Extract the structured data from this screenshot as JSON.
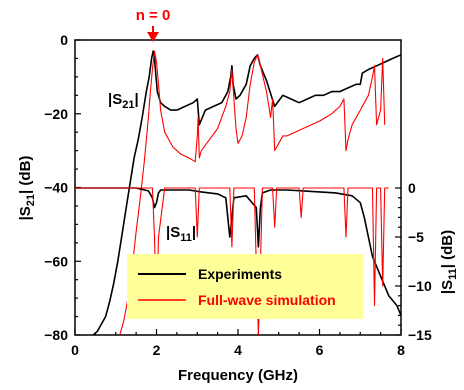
{
  "chart_data": {
    "type": "line",
    "annotation": {
      "text": "n = 0",
      "x": 2.0,
      "color": "#ff0000"
    },
    "xlabel": "Frequency (GHz)",
    "xlim": [
      0,
      8
    ],
    "xticks": [
      "0",
      "2",
      "4",
      "6",
      "8"
    ],
    "y_left": {
      "label_main": "|S",
      "label_sub": "21",
      "label_tail": "| (dB)",
      "lim": [
        -80,
        0
      ],
      "ticks": [
        "0",
        "−20",
        "−40",
        "−60",
        "−80"
      ]
    },
    "y_right": {
      "label_main": "|S",
      "label_sub": "11",
      "label_tail": "| (dB)",
      "lim": [
        -15,
        0
      ],
      "ticks": [
        "0",
        "−5",
        "−10",
        "−15"
      ]
    },
    "curve_labels": {
      "s21": {
        "main": "|S",
        "sub": "21",
        "tail": "|"
      },
      "s11": {
        "main": "|S",
        "sub": "11",
        "tail": "|"
      }
    },
    "legend": {
      "placement": "bottom-center",
      "background": "#ffff99",
      "entries": [
        {
          "label": "Experiments",
          "color": "#000000"
        },
        {
          "label": "Full-wave simulation",
          "color": "#ff0000"
        }
      ]
    },
    "series": [
      {
        "name": "Experiments",
        "color": "#000000",
        "axis": "left",
        "trace": "S21",
        "x": [
          0.45,
          0.55,
          0.65,
          0.75,
          0.85,
          0.95,
          1.05,
          1.15,
          1.25,
          1.35,
          1.45,
          1.55,
          1.65,
          1.75,
          1.82,
          1.88,
          1.92,
          1.95,
          1.98,
          2.02,
          2.1,
          2.2,
          2.35,
          2.5,
          2.7,
          2.9,
          3.0,
          3.05,
          3.2,
          3.4,
          3.6,
          3.75,
          3.82,
          3.85,
          3.88,
          3.95,
          4.05,
          4.2,
          4.3,
          4.4,
          4.48,
          4.55,
          4.7,
          4.9,
          5.1,
          5.3,
          5.5,
          5.7,
          5.9,
          6.1,
          6.3,
          6.5,
          6.7,
          6.9,
          7.0,
          7.05,
          7.2,
          7.4,
          7.6,
          7.8,
          8.0
        ],
        "y": [
          -80,
          -79,
          -77,
          -75,
          -71,
          -66,
          -60,
          -53,
          -46,
          -39,
          -32,
          -27,
          -21,
          -14,
          -10,
          -5,
          -3,
          -5,
          -9,
          -14,
          -17,
          -18,
          -19,
          -19,
          -18,
          -17,
          -16,
          -23,
          -19,
          -18,
          -17,
          -14,
          -10,
          -7,
          -12,
          -16,
          -15,
          -12,
          -7,
          -5,
          -4,
          -7,
          -11,
          -18,
          -15,
          -16,
          -17,
          -16,
          -15,
          -15,
          -14,
          -14,
          -13,
          -12,
          -12,
          -9,
          -8,
          -7,
          -6,
          -5,
          -4
        ]
      },
      {
        "name": "Full-wave simulation",
        "color": "#ff0000",
        "axis": "left",
        "trace": "S21",
        "x": [
          1.1,
          1.2,
          1.3,
          1.4,
          1.5,
          1.6,
          1.7,
          1.8,
          1.85,
          1.9,
          1.95,
          2.0,
          2.05,
          2.1,
          2.2,
          2.4,
          2.6,
          2.8,
          2.95,
          3.0,
          3.02,
          3.05,
          3.1,
          3.3,
          3.5,
          3.7,
          3.8,
          3.85,
          3.9,
          3.95,
          4.0,
          4.1,
          4.2,
          4.3,
          4.4,
          4.48,
          4.55,
          4.7,
          4.8,
          4.85,
          4.9,
          5.0,
          5.1,
          5.2,
          5.4,
          5.6,
          5.8,
          6.0,
          6.3,
          6.5,
          6.6,
          6.65,
          6.7,
          6.8,
          7.0,
          7.2,
          7.3,
          7.35,
          7.4,
          7.5,
          7.55,
          7.6
        ],
        "y": [
          -80,
          -76,
          -70,
          -62,
          -52,
          -43,
          -33,
          -21,
          -14,
          -8,
          -3,
          -6,
          -12,
          -19,
          -25,
          -29,
          -31,
          -32,
          -33,
          -26,
          -21,
          -32,
          -30,
          -27,
          -24,
          -18,
          -14,
          -8,
          -16,
          -24,
          -28,
          -26,
          -21,
          -12,
          -6,
          -4,
          -7,
          -14,
          -21,
          -16,
          -30,
          -28,
          -26,
          -26,
          -25,
          -24,
          -23,
          -22,
          -20,
          -18,
          -16,
          -30,
          -27,
          -23,
          -19,
          -15,
          -10,
          -7,
          -23,
          -19,
          -5,
          -23
        ]
      },
      {
        "name": "Experiments",
        "color": "#000000",
        "axis": "right",
        "trace": "S11",
        "x": [
          0,
          0.5,
          1.0,
          1.5,
          1.8,
          1.9,
          1.95,
          2.0,
          2.05,
          2.1,
          2.4,
          2.8,
          3.1,
          3.5,
          3.7,
          3.75,
          3.8,
          3.85,
          3.9,
          4.2,
          4.45,
          4.5,
          4.55,
          4.6,
          4.8,
          5.2,
          5.6,
          6.0,
          6.4,
          6.8,
          7.0,
          7.1,
          7.2,
          7.3,
          7.5,
          7.7,
          7.9,
          8.0
        ],
        "y": [
          0,
          0,
          0,
          0,
          -0.3,
          -1,
          -2,
          -1.5,
          -0.5,
          -0.2,
          -0.2,
          -0.2,
          -0.4,
          -0.6,
          -1,
          -3,
          -5,
          -3,
          -1,
          -0.8,
          -2,
          -6,
          -2,
          -0.5,
          -0.2,
          -0.2,
          -0.3,
          -0.4,
          -0.5,
          -0.8,
          -1.5,
          -3,
          -5,
          -7,
          -9,
          -11,
          -12,
          -13
        ]
      },
      {
        "name": "Full-wave simulation",
        "color": "#ff0000",
        "axis": "right",
        "trace": "S11",
        "x": [
          0,
          1.9,
          1.95,
          2.0,
          2.05,
          2.2,
          2.95,
          3.0,
          3.05,
          3.2,
          3.8,
          3.85,
          3.9,
          4.4,
          4.45,
          4.5,
          4.55,
          4.6,
          4.85,
          4.9,
          4.95,
          5.5,
          5.55,
          5.6,
          6.6,
          6.65,
          6.7,
          7.3,
          7.35,
          7.4,
          7.5,
          7.55,
          7.6,
          7.7
        ],
        "y": [
          0,
          0,
          -5,
          -13,
          -5,
          0,
          0,
          -5,
          0,
          0,
          0,
          -6,
          0,
          0,
          -8,
          -15,
          -8,
          0,
          0,
          -4,
          0,
          0,
          -3,
          0,
          0,
          -5,
          0,
          0,
          -12,
          0,
          0,
          -10,
          0,
          0
        ]
      }
    ]
  }
}
